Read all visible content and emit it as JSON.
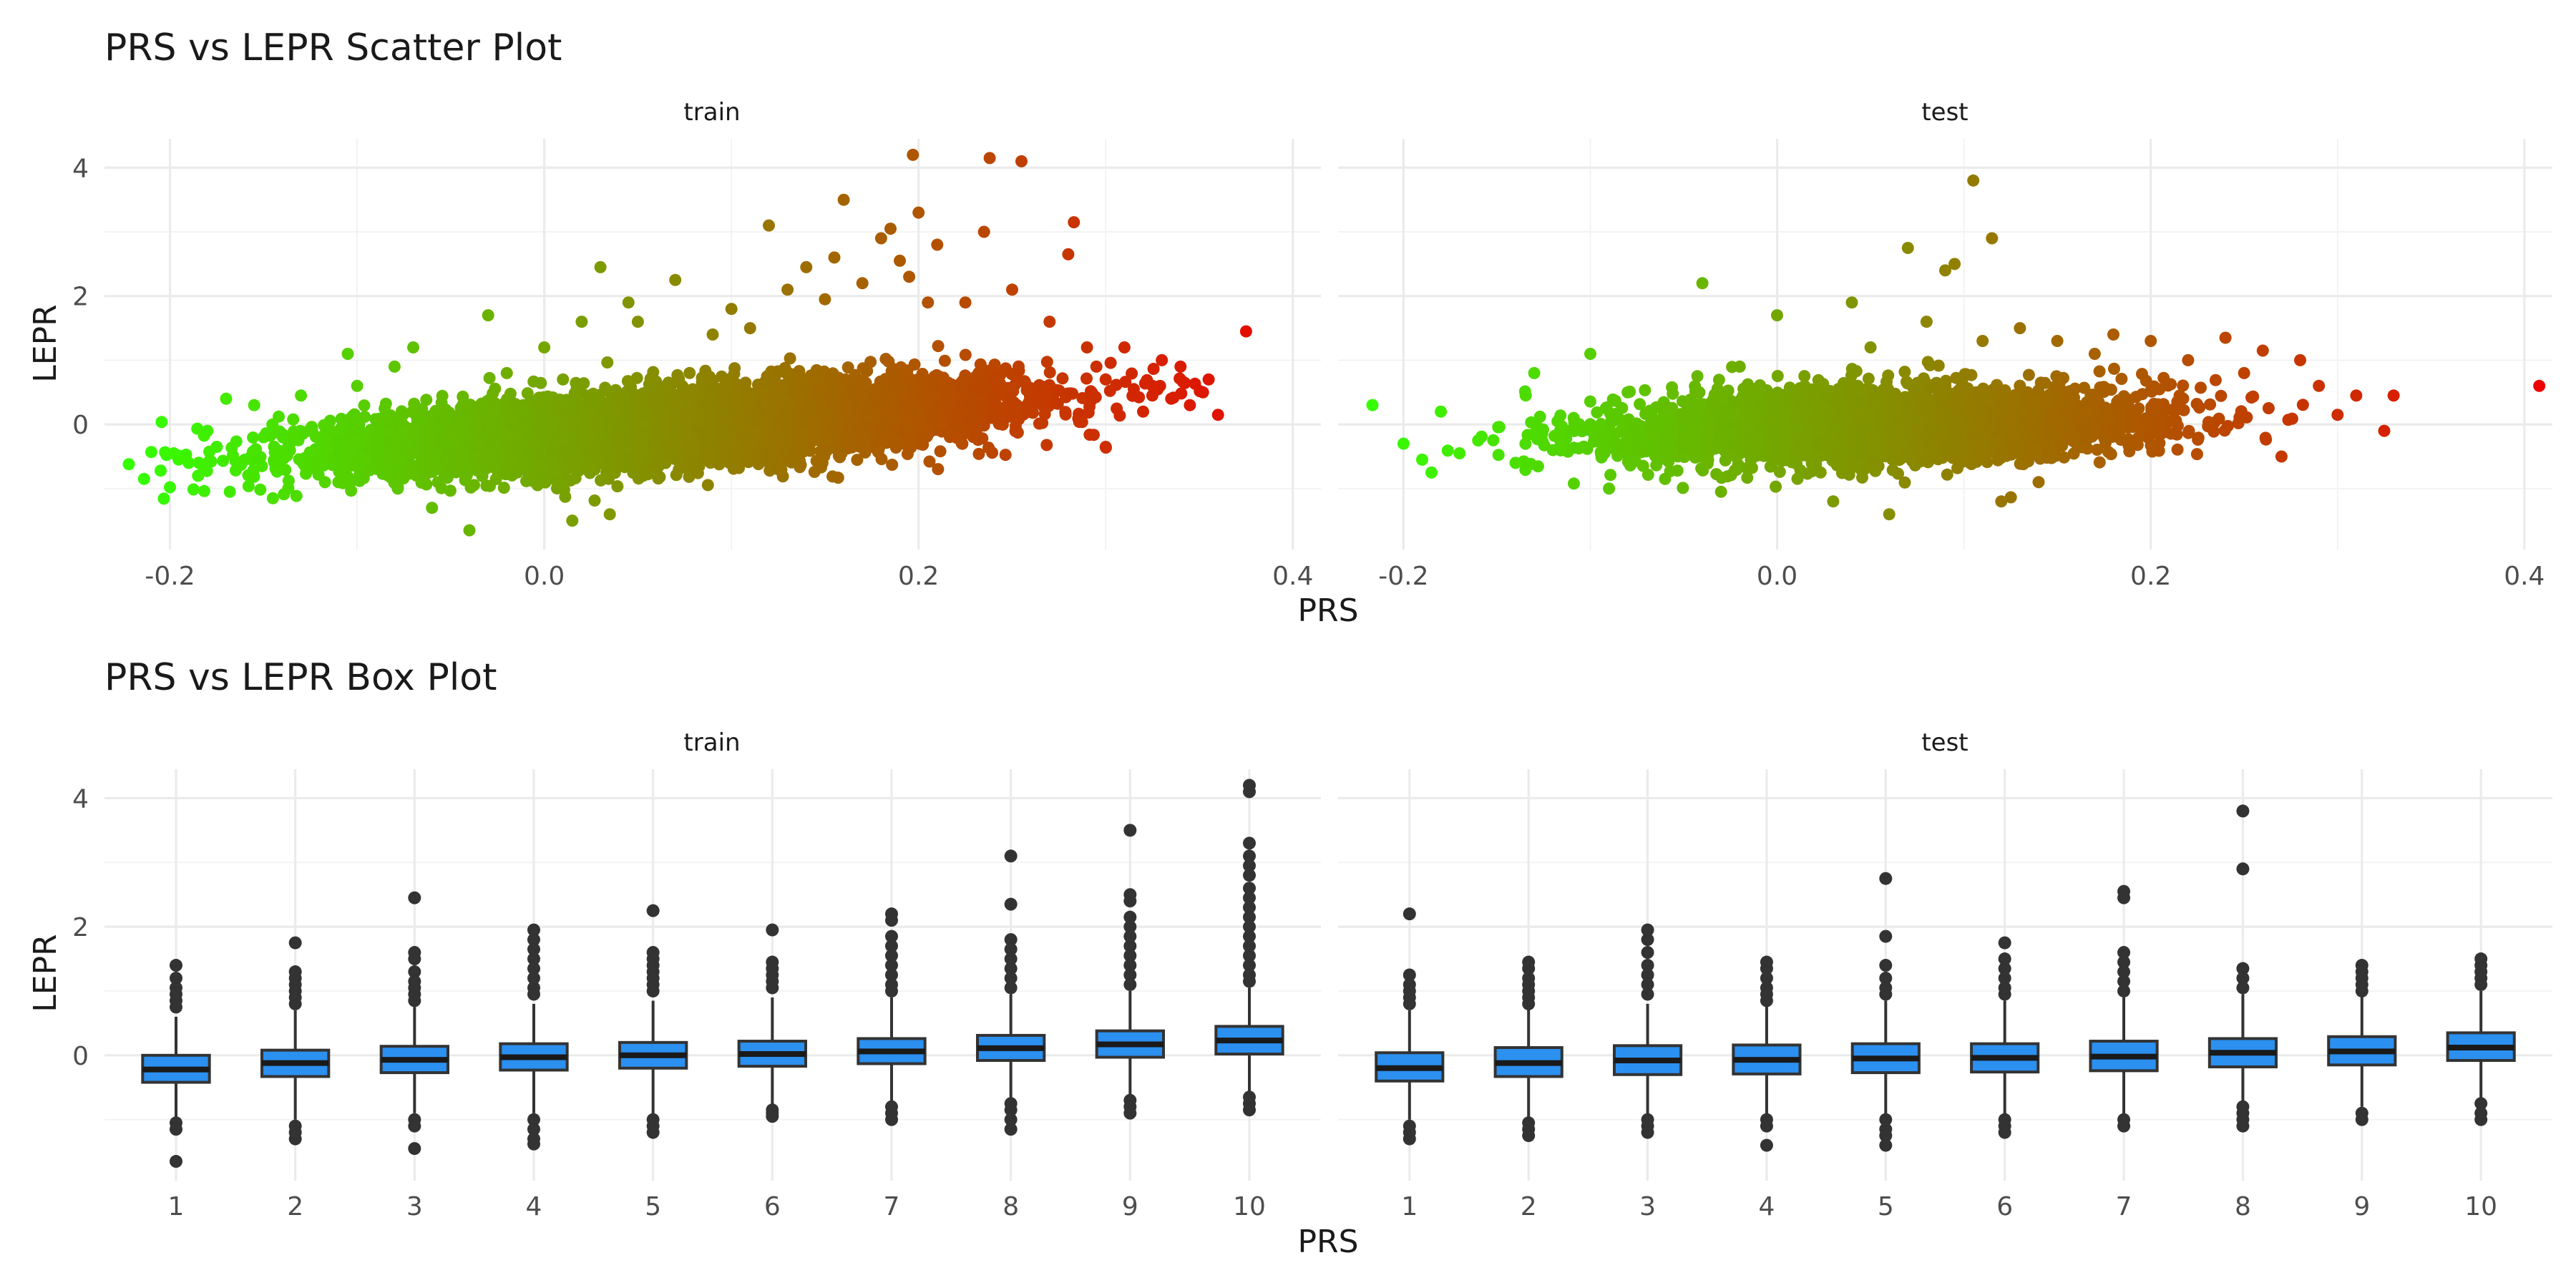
{
  "chart_data": [
    {
      "type": "scatter",
      "title": "PRS vs LEPR Scatter Plot",
      "xlabel": "PRS",
      "ylabel": "LEPR",
      "xlim": [
        -0.235,
        0.415
      ],
      "ylim": [
        -1.95,
        4.45
      ],
      "x_ticks": [
        -0.2,
        0.0,
        0.2,
        0.4
      ],
      "x_tick_labels": [
        "-0.2",
        "0.0",
        "0.2",
        "0.4"
      ],
      "y_ticks": [
        0,
        2,
        4
      ],
      "y_tick_labels": [
        "0",
        "2",
        "4"
      ],
      "grid": true,
      "color_gradient": {
        "low": "#33ff00",
        "high": "#ee0000",
        "mapped_to": "PRS"
      },
      "panels": [
        {
          "name": "train",
          "points": [
            [
              -0.222,
              -0.62
            ],
            [
              -0.21,
              -0.43
            ],
            [
              -0.205,
              -0.72
            ],
            [
              -0.2,
              -0.98
            ],
            [
              -0.198,
              -0.45
            ],
            [
              -0.19,
              -0.6
            ],
            [
              -0.185,
              -0.8
            ],
            [
              -0.18,
              -0.1
            ],
            [
              -0.175,
              -0.35
            ],
            [
              -0.17,
              0.4
            ],
            [
              -0.168,
              -1.05
            ],
            [
              -0.16,
              -0.55
            ],
            [
              -0.155,
              0.3
            ],
            [
              -0.15,
              -0.2
            ],
            [
              -0.145,
              -1.15
            ],
            [
              -0.14,
              -0.5
            ],
            [
              -0.13,
              0.45
            ],
            [
              -0.12,
              -0.2
            ],
            [
              -0.11,
              -0.9
            ],
            [
              -0.105,
              1.1
            ],
            [
              -0.1,
              0.6
            ],
            [
              -0.09,
              -0.4
            ],
            [
              -0.08,
              0.9
            ],
            [
              -0.07,
              1.2
            ],
            [
              -0.06,
              -1.3
            ],
            [
              -0.04,
              -1.65
            ],
            [
              -0.03,
              1.7
            ],
            [
              -0.02,
              0.8
            ],
            [
              0.0,
              1.2
            ],
            [
              0.01,
              0.7
            ],
            [
              0.015,
              -1.5
            ],
            [
              0.02,
              1.6
            ],
            [
              0.03,
              2.45
            ],
            [
              0.035,
              -1.4
            ],
            [
              0.045,
              1.9
            ],
            [
              0.05,
              1.6
            ],
            [
              0.07,
              2.25
            ],
            [
              0.09,
              1.4
            ],
            [
              0.1,
              1.8
            ],
            [
              0.11,
              1.5
            ],
            [
              0.12,
              3.1
            ],
            [
              0.13,
              2.1
            ],
            [
              0.14,
              2.45
            ],
            [
              0.15,
              1.95
            ],
            [
              0.155,
              2.6
            ],
            [
              0.16,
              3.5
            ],
            [
              0.17,
              2.2
            ],
            [
              0.18,
              2.9
            ],
            [
              0.185,
              3.05
            ],
            [
              0.19,
              2.55
            ],
            [
              0.195,
              2.3
            ],
            [
              0.197,
              4.2
            ],
            [
              0.2,
              3.3
            ],
            [
              0.205,
              1.9
            ],
            [
              0.21,
              2.8
            ],
            [
              0.225,
              1.9
            ],
            [
              0.235,
              3.0
            ],
            [
              0.238,
              4.15
            ],
            [
              0.25,
              2.1
            ],
            [
              0.255,
              4.1
            ],
            [
              0.27,
              1.6
            ],
            [
              0.28,
              2.65
            ],
            [
              0.283,
              3.15
            ],
            [
              0.29,
              1.2
            ],
            [
              0.295,
              0.9
            ],
            [
              0.3,
              0.7
            ],
            [
              0.3,
              -0.35
            ],
            [
              0.31,
              1.2
            ],
            [
              0.315,
              0.55
            ],
            [
              0.32,
              0.2
            ],
            [
              0.325,
              0.6
            ],
            [
              0.33,
              1.0
            ],
            [
              0.335,
              0.4
            ],
            [
              0.34,
              0.9
            ],
            [
              0.345,
              0.3
            ],
            [
              0.352,
              0.5
            ],
            [
              0.355,
              0.7
            ],
            [
              0.36,
              0.15
            ],
            [
              0.375,
              1.45
            ]
          ]
        },
        {
          "name": "test",
          "points": [
            [
              -0.2,
              -0.3
            ],
            [
              -0.19,
              -0.55
            ],
            [
              -0.185,
              -0.75
            ],
            [
              -0.18,
              0.2
            ],
            [
              -0.17,
              -0.45
            ],
            [
              -0.16,
              -0.25
            ],
            [
              -0.14,
              -0.6
            ],
            [
              -0.13,
              0.8
            ],
            [
              -0.12,
              -0.4
            ],
            [
              -0.1,
              1.1
            ],
            [
              -0.09,
              -1.0
            ],
            [
              -0.08,
              0.5
            ],
            [
              -0.06,
              -0.85
            ],
            [
              -0.04,
              2.2
            ],
            [
              -0.03,
              -1.05
            ],
            [
              -0.02,
              0.9
            ],
            [
              0.0,
              1.7
            ],
            [
              0.02,
              0.5
            ],
            [
              0.03,
              -1.2
            ],
            [
              0.04,
              1.9
            ],
            [
              0.05,
              1.2
            ],
            [
              0.06,
              -1.4
            ],
            [
              0.07,
              2.75
            ],
            [
              0.08,
              1.6
            ],
            [
              0.09,
              2.4
            ],
            [
              0.095,
              2.5
            ],
            [
              0.105,
              3.8
            ],
            [
              0.11,
              1.3
            ],
            [
              0.115,
              2.9
            ],
            [
              0.12,
              -1.2
            ],
            [
              0.13,
              1.5
            ],
            [
              0.14,
              -0.9
            ],
            [
              0.15,
              1.3
            ],
            [
              0.17,
              1.1
            ],
            [
              0.18,
              1.4
            ],
            [
              0.2,
              1.3
            ],
            [
              0.22,
              1.0
            ],
            [
              0.24,
              1.35
            ],
            [
              0.25,
              0.8
            ],
            [
              0.26,
              1.15
            ],
            [
              0.27,
              -0.5
            ],
            [
              0.28,
              1.0
            ],
            [
              0.29,
              0.6
            ],
            [
              0.3,
              0.15
            ],
            [
              0.31,
              0.45
            ],
            [
              0.325,
              -0.1
            ],
            [
              0.33,
              0.45
            ],
            [
              0.408,
              0.6
            ]
          ]
        }
      ]
    },
    {
      "type": "box",
      "title": "PRS vs LEPR Box Plot",
      "xlabel": "PRS",
      "ylabel": "LEPR",
      "categories": [
        "1",
        "2",
        "3",
        "4",
        "5",
        "6",
        "7",
        "8",
        "9",
        "10"
      ],
      "ylim": [
        -1.95,
        4.45
      ],
      "y_ticks": [
        0,
        2,
        4
      ],
      "y_tick_labels": [
        "0",
        "2",
        "4"
      ],
      "grid": true,
      "box_fill": "#2b90f0",
      "panels": [
        {
          "name": "train",
          "boxes": [
            {
              "q1": -0.42,
              "median": -0.22,
              "q3": 0.0,
              "lo": -1.0,
              "hi": 0.6,
              "outliers": [
                1.4,
                1.2,
                1.05,
                0.95,
                0.85,
                0.75,
                -1.05,
                -1.15,
                -1.65
              ]
            },
            {
              "q1": -0.33,
              "median": -0.12,
              "q3": 0.08,
              "lo": -1.0,
              "hi": 0.7,
              "outliers": [
                1.75,
                1.3,
                1.2,
                1.1,
                1.0,
                0.9,
                0.8,
                -1.1,
                -1.2,
                -1.3
              ]
            },
            {
              "q1": -0.27,
              "median": -0.07,
              "q3": 0.14,
              "lo": -0.9,
              "hi": 0.75,
              "outliers": [
                2.45,
                1.6,
                1.5,
                1.3,
                1.15,
                1.05,
                0.95,
                0.85,
                -1.0,
                -1.1,
                -1.45
              ]
            },
            {
              "q1": -0.23,
              "median": -0.03,
              "q3": 0.18,
              "lo": -0.9,
              "hi": 0.8,
              "outliers": [
                1.95,
                1.8,
                1.65,
                1.5,
                1.35,
                1.2,
                1.05,
                0.95,
                -1.0,
                -1.15,
                -1.3,
                -1.38
              ]
            },
            {
              "q1": -0.2,
              "median": 0.0,
              "q3": 0.2,
              "lo": -0.95,
              "hi": 0.85,
              "outliers": [
                2.25,
                1.6,
                1.5,
                1.4,
                1.3,
                1.2,
                1.1,
                1.0,
                -1.0,
                -1.1,
                -1.2
              ]
            },
            {
              "q1": -0.17,
              "median": 0.02,
              "q3": 0.22,
              "lo": -0.8,
              "hi": 0.9,
              "outliers": [
                1.95,
                1.45,
                1.35,
                1.25,
                1.15,
                1.05,
                -0.85,
                -0.9,
                -0.95
              ]
            },
            {
              "q1": -0.13,
              "median": 0.06,
              "q3": 0.26,
              "lo": -0.75,
              "hi": 0.9,
              "outliers": [
                2.2,
                2.1,
                1.85,
                1.7,
                1.55,
                1.4,
                1.25,
                1.1,
                1.0,
                -0.8,
                -0.9,
                -1.0
              ]
            },
            {
              "q1": -0.08,
              "median": 0.11,
              "q3": 0.31,
              "lo": -0.7,
              "hi": 0.95,
              "outliers": [
                3.1,
                2.35,
                1.8,
                1.65,
                1.5,
                1.35,
                1.2,
                1.05,
                -0.75,
                -0.85,
                -1.0,
                -1.15
              ]
            },
            {
              "q1": -0.03,
              "median": 0.17,
              "q3": 0.38,
              "lo": -0.65,
              "hi": 1.0,
              "outliers": [
                3.5,
                2.5,
                2.4,
                2.15,
                2.0,
                1.85,
                1.7,
                1.55,
                1.4,
                1.25,
                1.1,
                -0.7,
                -0.8,
                -0.9
              ]
            },
            {
              "q1": 0.02,
              "median": 0.23,
              "q3": 0.45,
              "lo": -0.6,
              "hi": 1.05,
              "outliers": [
                4.2,
                4.1,
                3.3,
                3.1,
                2.95,
                2.8,
                2.6,
                2.45,
                2.3,
                2.15,
                2.0,
                1.85,
                1.7,
                1.55,
                1.4,
                1.25,
                1.15,
                -0.65,
                -0.75,
                -0.85
              ]
            }
          ]
        },
        {
          "name": "test",
          "boxes": [
            {
              "q1": -0.4,
              "median": -0.2,
              "q3": 0.04,
              "lo": -1.0,
              "hi": 0.7,
              "outliers": [
                2.2,
                1.25,
                1.1,
                1.0,
                0.9,
                0.8,
                -1.1,
                -1.2,
                -1.3
              ]
            },
            {
              "q1": -0.33,
              "median": -0.12,
              "q3": 0.12,
              "lo": -1.0,
              "hi": 0.75,
              "outliers": [
                1.45,
                1.35,
                1.2,
                1.1,
                1.0,
                0.9,
                0.8,
                -1.05,
                -1.15,
                -1.25
              ]
            },
            {
              "q1": -0.3,
              "median": -0.08,
              "q3": 0.15,
              "lo": -0.95,
              "hi": 0.8,
              "outliers": [
                1.95,
                1.8,
                1.6,
                1.4,
                1.25,
                1.1,
                0.95,
                -1.0,
                -1.1,
                -1.2
              ]
            },
            {
              "q1": -0.29,
              "median": -0.07,
              "q3": 0.16,
              "lo": -0.95,
              "hi": 0.8,
              "outliers": [
                1.45,
                1.35,
                1.2,
                1.05,
                0.95,
                0.85,
                -1.0,
                -1.1,
                -1.4
              ]
            },
            {
              "q1": -0.27,
              "median": -0.05,
              "q3": 0.18,
              "lo": -0.95,
              "hi": 0.85,
              "outliers": [
                2.75,
                1.85,
                1.4,
                1.2,
                1.05,
                0.95,
                -1.0,
                -1.15,
                -1.25,
                -1.4
              ]
            },
            {
              "q1": -0.26,
              "median": -0.04,
              "q3": 0.18,
              "lo": -0.95,
              "hi": 0.85,
              "outliers": [
                1.75,
                1.5,
                1.35,
                1.2,
                1.05,
                0.95,
                -1.0,
                -1.1,
                -1.2
              ]
            },
            {
              "q1": -0.24,
              "median": -0.02,
              "q3": 0.22,
              "lo": -0.95,
              "hi": 0.9,
              "outliers": [
                2.55,
                2.45,
                1.6,
                1.45,
                1.3,
                1.15,
                1.0,
                -1.0,
                -1.1
              ]
            },
            {
              "q1": -0.18,
              "median": 0.04,
              "q3": 0.26,
              "lo": -0.75,
              "hi": 0.95,
              "outliers": [
                3.8,
                2.9,
                1.35,
                1.2,
                1.05,
                -0.8,
                -0.9,
                -1.0,
                -1.1
              ]
            },
            {
              "q1": -0.15,
              "median": 0.06,
              "q3": 0.29,
              "lo": -0.8,
              "hi": 0.95,
              "outliers": [
                1.4,
                1.3,
                1.2,
                1.1,
                1.0,
                -0.9,
                -1.0
              ]
            },
            {
              "q1": -0.08,
              "median": 0.12,
              "q3": 0.35,
              "lo": -0.7,
              "hi": 1.0,
              "outliers": [
                1.5,
                1.4,
                1.3,
                1.2,
                1.1,
                -0.75,
                -0.9,
                -1.0
              ]
            }
          ]
        }
      ]
    }
  ]
}
